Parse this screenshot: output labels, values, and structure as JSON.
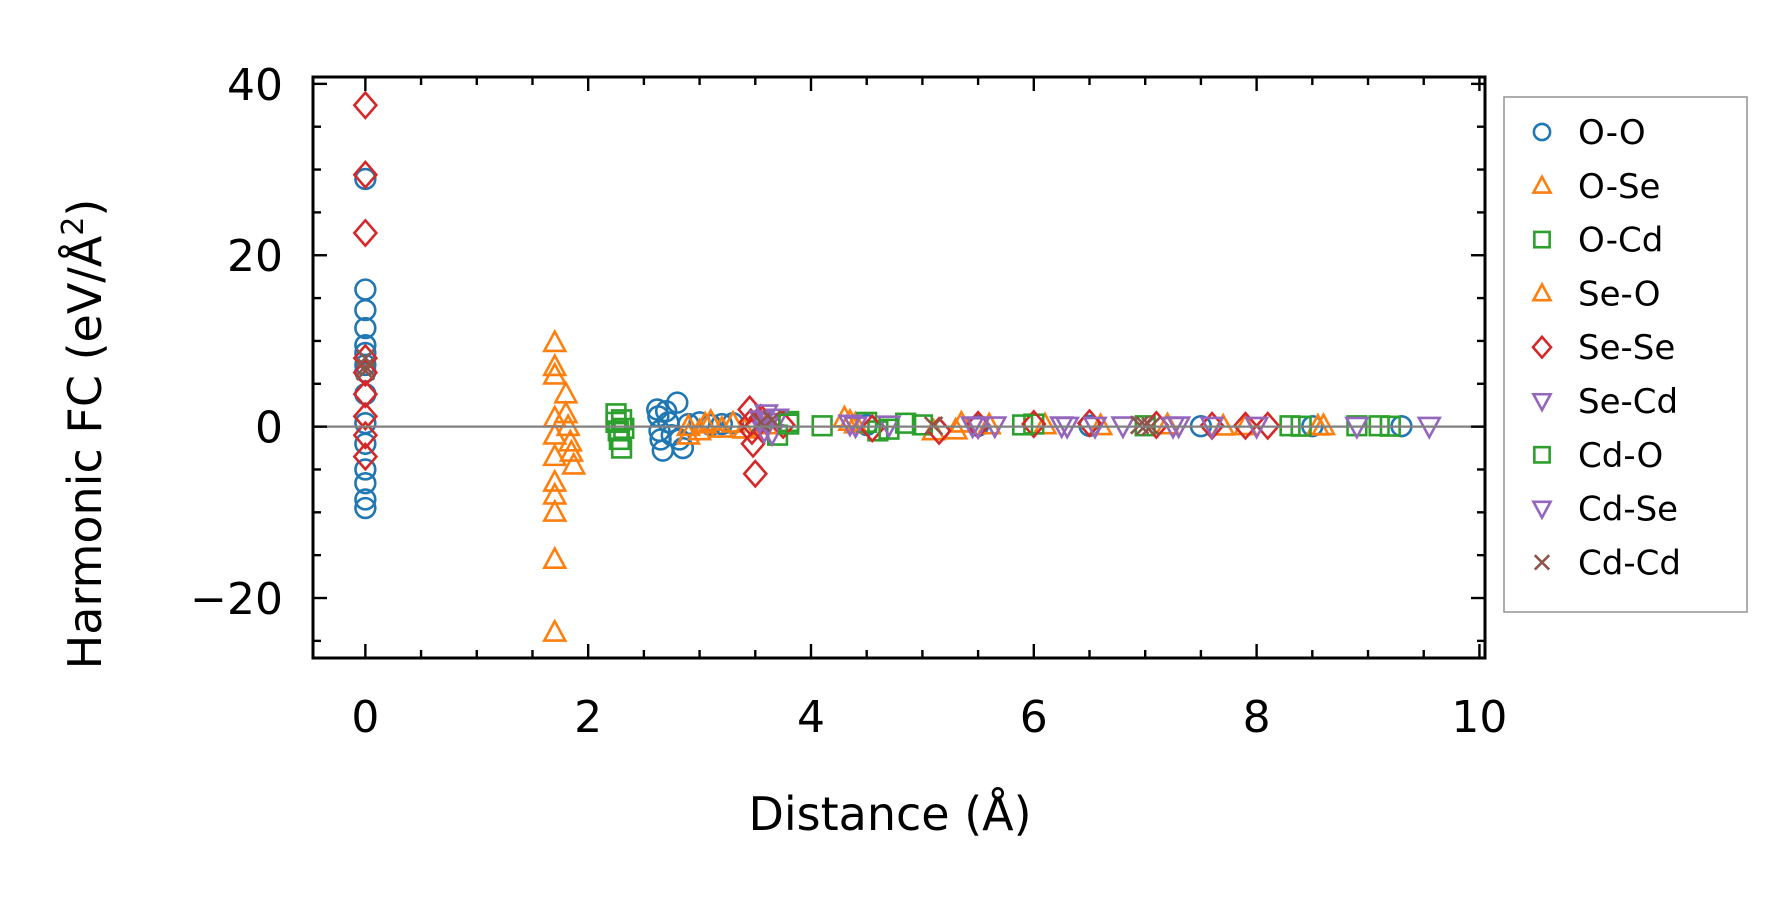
{
  "chart_data": {
    "type": "scatter",
    "title": "",
    "xlabel": "Distance (Å)",
    "ylabel_main": "Harmonic FC (eV/Å",
    "ylabel_sup": "2",
    "ylabel_end": ")",
    "xlim": [
      -0.47,
      10.05
    ],
    "ylim": [
      -27,
      40.8
    ],
    "xticks": [
      0,
      2,
      4,
      6,
      8,
      10
    ],
    "xtick_labels": [
      "0",
      "2",
      "4",
      "6",
      "8",
      "10"
    ],
    "yticks": [
      -20,
      0,
      20,
      40
    ],
    "ytick_labels": [
      "−20",
      "0",
      "20",
      "40"
    ],
    "grid": false,
    "zero_line": true,
    "legend_position": "right",
    "series": [
      {
        "name": "O-O",
        "marker": "circle",
        "color": "#1f77b4",
        "points": [
          [
            0,
            28.9
          ],
          [
            0,
            16
          ],
          [
            0,
            13.6
          ],
          [
            0,
            11.5
          ],
          [
            0,
            9.5
          ],
          [
            0,
            8.6
          ],
          [
            0,
            7.2
          ],
          [
            0,
            6.4
          ],
          [
            0,
            3.8
          ],
          [
            0,
            0.4
          ],
          [
            0,
            -2
          ],
          [
            0,
            -5
          ],
          [
            0,
            -6.6
          ],
          [
            0,
            -8.5
          ],
          [
            0,
            -9.5
          ],
          [
            2.62,
            2
          ],
          [
            2.63,
            1.2
          ],
          [
            2.64,
            -0.5
          ],
          [
            2.65,
            -1.5
          ],
          [
            2.67,
            -2.8
          ],
          [
            2.7,
            1.8
          ],
          [
            2.72,
            0.5
          ],
          [
            2.75,
            -1
          ],
          [
            2.8,
            2.8
          ],
          [
            2.82,
            -1.5
          ],
          [
            2.85,
            -2.5
          ],
          [
            2.9,
            0.3
          ],
          [
            3.0,
            0.5
          ],
          [
            3.1,
            0.2
          ],
          [
            3.2,
            0.3
          ],
          [
            3.3,
            0.4
          ],
          [
            4.5,
            0.2
          ],
          [
            5.5,
            0.1
          ],
          [
            6.5,
            0.1
          ],
          [
            7.5,
            0.05
          ],
          [
            8.5,
            0.05
          ],
          [
            9.3,
            0.05
          ]
        ]
      },
      {
        "name": "O-Se",
        "marker": "triangle-up",
        "color": "#ff7f0e",
        "points": [
          [
            1.7,
            9.8
          ],
          [
            1.7,
            7
          ],
          [
            1.7,
            6
          ],
          [
            1.7,
            1
          ],
          [
            1.7,
            -1
          ],
          [
            1.7,
            -3.5
          ],
          [
            1.7,
            -6.5
          ],
          [
            1.7,
            -8
          ],
          [
            1.7,
            -10
          ],
          [
            1.7,
            -15.5
          ],
          [
            1.7,
            -24
          ],
          [
            1.8,
            3.8
          ],
          [
            1.8,
            1.5
          ],
          [
            1.82,
            0
          ],
          [
            1.84,
            -1.8
          ],
          [
            1.85,
            -3
          ],
          [
            1.87,
            -4.5
          ],
          [
            2.9,
            0
          ],
          [
            3.0,
            -0.5
          ],
          [
            3.1,
            0.6
          ],
          [
            3.3,
            0.4
          ],
          [
            3.4,
            -0.3
          ],
          [
            3.6,
            0.2
          ],
          [
            4.3,
            1
          ],
          [
            4.4,
            0.3
          ],
          [
            5.1,
            -0.5
          ],
          [
            5.35,
            0.4
          ],
          [
            6.1,
            0.2
          ],
          [
            7.2,
            0.2
          ],
          [
            7.9,
            0.1
          ],
          [
            8.6,
            0.1
          ]
        ]
      },
      {
        "name": "O-Cd",
        "marker": "square",
        "color": "#2ca02c",
        "points": [
          [
            2.25,
            1.5
          ],
          [
            2.25,
            0.5
          ],
          [
            2.27,
            -0.5
          ],
          [
            2.28,
            -1.5
          ],
          [
            2.3,
            -2.5
          ],
          [
            3.7,
            -1
          ],
          [
            3.8,
            0.6
          ],
          [
            4.1,
            0.1
          ],
          [
            4.5,
            0.5
          ],
          [
            4.6,
            -0.5
          ],
          [
            4.85,
            0.4
          ],
          [
            5.0,
            0.2
          ],
          [
            6.0,
            0.3
          ],
          [
            7.0,
            0.1
          ],
          [
            8.3,
            0.1
          ],
          [
            8.9,
            0.1
          ],
          [
            9.1,
            0.1
          ],
          [
            9.2,
            0.05
          ]
        ]
      },
      {
        "name": "Se-O",
        "marker": "triangle-up",
        "color": "#ff7f0e",
        "points": [
          [
            2.9,
            -1
          ],
          [
            3.05,
            0.3
          ],
          [
            3.2,
            -0.2
          ],
          [
            4.35,
            0.6
          ],
          [
            5.3,
            -0.4
          ],
          [
            5.6,
            0.2
          ],
          [
            6.6,
            0.1
          ],
          [
            7.7,
            0.05
          ],
          [
            8.55,
            0.05
          ]
        ]
      },
      {
        "name": "Se-Se",
        "marker": "diamond",
        "color": "#d62728",
        "points": [
          [
            0,
            37.5
          ],
          [
            0,
            29.4
          ],
          [
            0,
            22.6
          ],
          [
            0,
            8
          ],
          [
            0,
            6.3
          ],
          [
            0,
            3.8
          ],
          [
            0,
            1.2
          ],
          [
            0,
            -1
          ],
          [
            0,
            -3.5
          ],
          [
            3.45,
            2
          ],
          [
            3.46,
            0.5
          ],
          [
            3.47,
            -0.5
          ],
          [
            3.48,
            -2
          ],
          [
            3.5,
            -5.5
          ],
          [
            3.55,
            1
          ],
          [
            3.75,
            0.2
          ],
          [
            4.55,
            -0.2
          ],
          [
            5.15,
            -0.5
          ],
          [
            5.5,
            0.2
          ],
          [
            6.0,
            0.3
          ],
          [
            6.5,
            0.4
          ],
          [
            7.1,
            0.2
          ],
          [
            7.6,
            0.1
          ],
          [
            7.9,
            0.1
          ],
          [
            8.1,
            0.1
          ]
        ]
      },
      {
        "name": "Se-Cd",
        "marker": "triangle-down",
        "color": "#9467bd",
        "points": [
          [
            3.6,
            1.5
          ],
          [
            3.62,
            0.5
          ],
          [
            3.65,
            -0.8
          ],
          [
            3.7,
            1
          ],
          [
            4.35,
            0.3
          ],
          [
            4.7,
            0.2
          ],
          [
            5.5,
            0
          ],
          [
            5.65,
            0.1
          ],
          [
            6.25,
            0.1
          ],
          [
            6.55,
            0.05
          ],
          [
            6.8,
            0.1
          ],
          [
            7.3,
            0.1
          ],
          [
            7.6,
            0.05
          ],
          [
            8.0,
            0.05
          ],
          [
            9.55,
            0.05
          ]
        ]
      },
      {
        "name": "Cd-O",
        "marker": "square",
        "color": "#2ca02c",
        "points": [
          [
            2.3,
            0.8
          ],
          [
            2.32,
            -0.2
          ],
          [
            3.8,
            0.3
          ],
          [
            4.7,
            -0.3
          ],
          [
            5.9,
            0.2
          ],
          [
            8.4,
            0.05
          ]
        ]
      },
      {
        "name": "Cd-Se",
        "marker": "triangle-down",
        "color": "#9467bd",
        "points": [
          [
            3.55,
            0.8
          ],
          [
            3.58,
            -0.5
          ],
          [
            4.4,
            0.1
          ],
          [
            5.45,
            0.1
          ],
          [
            6.3,
            0.05
          ],
          [
            7.25,
            0.05
          ],
          [
            8.9,
            0.05
          ]
        ]
      },
      {
        "name": "Cd-Cd",
        "marker": "x",
        "color": "#8c564b",
        "points": [
          [
            0,
            8
          ],
          [
            0,
            7
          ],
          [
            0,
            6.5
          ],
          [
            3.55,
            0.5
          ],
          [
            3.65,
            0.8
          ],
          [
            5.1,
            0.1
          ],
          [
            6.95,
            0.2
          ],
          [
            7.0,
            0.1
          ],
          [
            7.05,
            0
          ]
        ]
      }
    ]
  }
}
